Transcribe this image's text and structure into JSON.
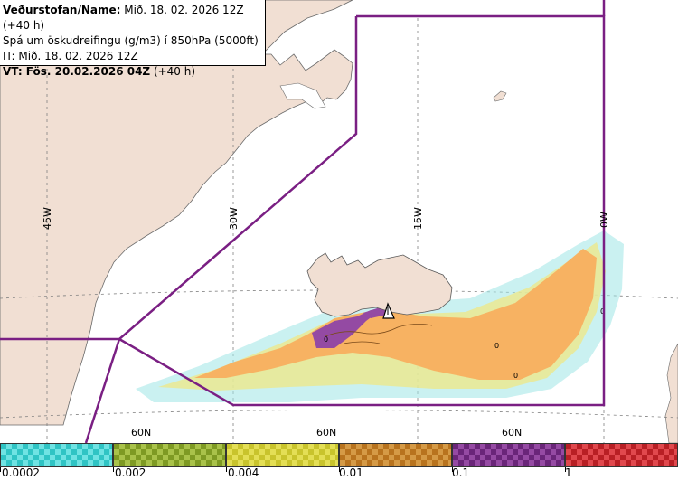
{
  "header": {
    "line1_bold": "Veðurstofan/Name:",
    "line1_rest": " Mið. 18. 02. 2026 12Z (+40 h)",
    "line2": "Spá um öskudreifingu (g/m3) í 850hPa (5000ft)",
    "line3": "IT: Mið. 18. 02. 2026 12Z",
    "line4_bold": "VT: Fös. 20.02.2026 04Z",
    "line4_rest": " (+40 h)"
  },
  "map": {
    "land_color": "#f1dfd3",
    "sea_color": "#ffffff",
    "boundary_color": "#7a1f83",
    "grid_color": "#808080",
    "longitude_labels": [
      "45W",
      "30W",
      "15W",
      "0W"
    ],
    "latitude_labels": [
      "60N",
      "60N",
      "60N"
    ],
    "ash_markers": [
      "0",
      "0",
      "0",
      "0"
    ],
    "volcano_icon": "volcano-triangle-icon"
  },
  "legend": {
    "segments": [
      {
        "color_a": "#2fc4c4",
        "color_b": "#6fe3e3"
      },
      {
        "color_a": "#7e9a23",
        "color_b": "#a9c24a"
      },
      {
        "color_a": "#c9c42c",
        "color_b": "#e4df55"
      },
      {
        "color_a": "#b8731e",
        "color_b": "#d59a46"
      },
      {
        "color_a": "#6a2579",
        "color_b": "#954aa3"
      },
      {
        "color_a": "#b81f24",
        "color_b": "#e0484d"
      }
    ],
    "labels": [
      "0.0002",
      "0.002",
      "0.004",
      "0.01",
      "0.1",
      "1"
    ]
  }
}
